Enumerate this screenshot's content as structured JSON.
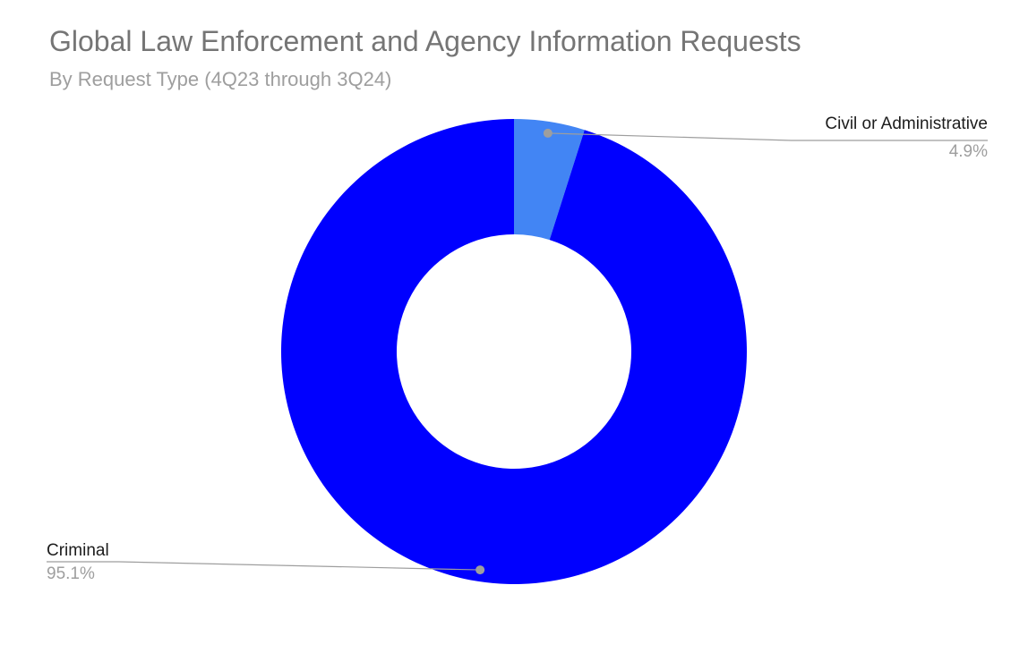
{
  "chart_data": {
    "type": "pie",
    "variant": "donut",
    "title": "Global Law Enforcement and Agency Information Requests",
    "subtitle": "By Request Type (4Q23 through 3Q24)",
    "rotation_deg": 0,
    "direction": "clockwise-from-top",
    "donut_hole_ratio": 0.5,
    "background": "#ffffff",
    "legend_position": "labeled-callouts",
    "title_color": "#757575",
    "subtitle_color": "#9e9e9e",
    "label_color": "#1c1c1c",
    "pct_color": "#9e9e9e",
    "callout_line_color": "#9e9e9e",
    "slices": [
      {
        "label": "Civil or Administrative",
        "value_pct": 4.9,
        "pct_label": "4.9%",
        "color": "#4285f4"
      },
      {
        "label": "Criminal",
        "value_pct": 95.1,
        "pct_label": "95.1%",
        "color": "#0000ff"
      }
    ]
  }
}
